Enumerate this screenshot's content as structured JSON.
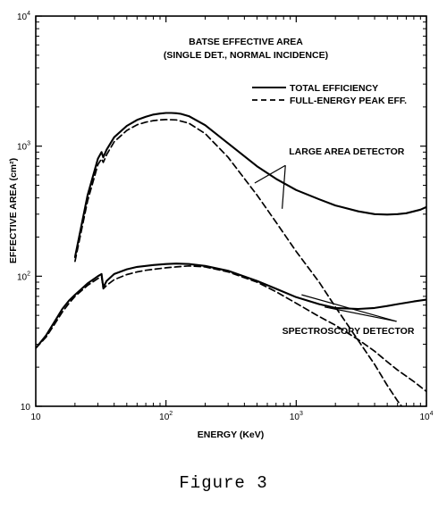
{
  "chart_data": {
    "type": "line",
    "title": "BATSE EFFECTIVE AREA",
    "subtitle": "(SINGLE DET., NORMAL INCIDENCE)",
    "xlabel": "ENERGY (KeV)",
    "ylabel": "EFFECTIVE AREA (cm²)",
    "x_scale": "log",
    "y_scale": "log",
    "xlim": [
      10,
      10000
    ],
    "ylim": [
      10,
      10000
    ],
    "x_ticks": [
      {
        "value": 10,
        "base": "10",
        "exp": ""
      },
      {
        "value": 100,
        "base": "10",
        "exp": "2"
      },
      {
        "value": 1000,
        "base": "10",
        "exp": "3"
      },
      {
        "value": 10000,
        "base": "10",
        "exp": "4"
      }
    ],
    "y_ticks": [
      {
        "value": 10,
        "base": "10",
        "exp": ""
      },
      {
        "value": 100,
        "base": "10",
        "exp": "2"
      },
      {
        "value": 1000,
        "base": "10",
        "exp": "3"
      },
      {
        "value": 10000,
        "base": "10",
        "exp": "4"
      }
    ],
    "grid": false,
    "legend": {
      "position": "top-right",
      "entries": [
        {
          "label": "TOTAL EFFICIENCY",
          "style": "solid"
        },
        {
          "label": "FULL-ENERGY PEAK EFF.",
          "style": "dashed"
        }
      ]
    },
    "annotations": [
      {
        "text": "LARGE AREA DETECTOR",
        "x": 880,
        "y": 860,
        "targets": [
          {
            "x": 480,
            "y": 520
          },
          {
            "x": 780,
            "y": 330
          }
        ]
      },
      {
        "text": "SPECTROSCOPY DETECTOR",
        "x": 780,
        "y": 36,
        "targets": [
          {
            "x": 1100,
            "y": 72
          },
          {
            "x": 1650,
            "y": 58
          }
        ]
      }
    ],
    "series": [
      {
        "detector": "LARGE AREA DETECTOR",
        "style": "solid",
        "x": [
          20,
          25,
          30,
          32,
          33,
          35,
          40,
          50,
          60,
          70,
          80,
          90,
          100,
          110,
          120,
          130,
          150,
          200,
          300,
          500,
          700,
          1000,
          1500,
          2000,
          3000,
          4000,
          5000,
          6000,
          7000,
          8000,
          9000,
          10000
        ],
        "y": [
          140,
          420,
          800,
          900,
          820,
          940,
          1170,
          1430,
          1590,
          1680,
          1750,
          1780,
          1800,
          1800,
          1790,
          1770,
          1700,
          1450,
          1050,
          700,
          560,
          460,
          390,
          350,
          315,
          300,
          298,
          300,
          305,
          315,
          325,
          340
        ]
      },
      {
        "detector": "LARGE AREA DETECTOR",
        "style": "dashed",
        "x": [
          20,
          25,
          30,
          32,
          33,
          35,
          40,
          50,
          60,
          70,
          80,
          90,
          100,
          120,
          150,
          200,
          300,
          500,
          700,
          1000,
          1500,
          2000,
          3000,
          4000,
          5000,
          6000,
          7000,
          8000
        ],
        "y": [
          130,
          380,
          720,
          800,
          750,
          860,
          1080,
          1320,
          1460,
          1530,
          1570,
          1590,
          1600,
          1590,
          1500,
          1250,
          820,
          420,
          260,
          155,
          90,
          58,
          32,
          21,
          14.5,
          11,
          9,
          7.5
        ]
      },
      {
        "detector": "SPECTROSCOPY DETECTOR",
        "style": "solid",
        "x": [
          10,
          12,
          14,
          16,
          18,
          20,
          25,
          30,
          32,
          33,
          35,
          40,
          50,
          60,
          70,
          80,
          100,
          120,
          150,
          200,
          300,
          500,
          700,
          1000,
          1500,
          2000,
          3000,
          4000,
          5000,
          6000,
          8000,
          10000
        ],
        "y": [
          28,
          35,
          45,
          56,
          65,
          72,
          88,
          100,
          104,
          82,
          92,
          104,
          113,
          118,
          120,
          122,
          124,
          125,
          124,
          120,
          110,
          92,
          80,
          69,
          61,
          57,
          56,
          57,
          59,
          61,
          64,
          66
        ]
      },
      {
        "detector": "SPECTROSCOPY DETECTOR",
        "style": "dashed",
        "x": [
          10,
          12,
          14,
          16,
          18,
          20,
          25,
          30,
          32,
          33,
          35,
          40,
          50,
          60,
          70,
          80,
          100,
          120,
          150,
          200,
          300,
          500,
          700,
          1000,
          1500,
          2000,
          3000,
          4000,
          5000,
          6000,
          8000,
          10000
        ],
        "y": [
          28,
          34,
          43,
          53,
          62,
          70,
          85,
          96,
          99,
          80,
          85,
          94,
          103,
          108,
          111,
          113,
          116,
          118,
          120,
          118,
          108,
          90,
          76,
          62,
          49,
          42,
          32.5,
          26.5,
          22,
          19,
          15.5,
          13
        ]
      }
    ]
  },
  "caption": "Figure 3"
}
